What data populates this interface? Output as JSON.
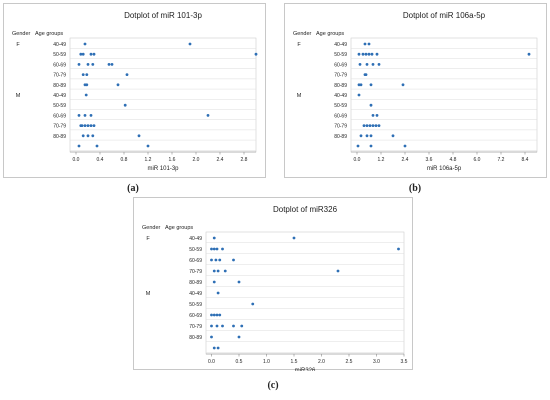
{
  "chart_data": [
    {
      "type": "scatter",
      "subtype": "dotplot",
      "title": "Dotplot of miR 101-3p",
      "xlabel": "miR 101-3p",
      "ylabel_gender": "Gender",
      "ylabel_age": "Age groups",
      "xlim": [
        -0.1,
        3.0
      ],
      "xticks": [
        0.0,
        0.4,
        0.8,
        1.2,
        1.6,
        2.0,
        2.4,
        2.8
      ],
      "xtick_labels": [
        "0.0",
        "0.4",
        "0.8",
        "1.2",
        "1.6",
        "2.0",
        "2.4",
        "2.8"
      ],
      "rows": [
        {
          "gender": "F",
          "age": "40-49",
          "values": [
            0.15,
            1.9
          ]
        },
        {
          "gender": "",
          "age": "50-59",
          "values": [
            0.08,
            0.12,
            0.25,
            0.3,
            3.0
          ]
        },
        {
          "gender": "",
          "age": "60-69",
          "values": [
            0.05,
            0.2,
            0.28,
            0.55,
            0.6
          ]
        },
        {
          "gender": "",
          "age": "70-79",
          "values": [
            0.12,
            0.18,
            0.85
          ]
        },
        {
          "gender": "",
          "age": "80-89",
          "values": [
            0.15,
            0.18,
            0.7
          ]
        },
        {
          "gender": "M",
          "age": "40-49",
          "values": [
            0.17
          ]
        },
        {
          "gender": "",
          "age": "50-59",
          "values": [
            0.82
          ]
        },
        {
          "gender": "",
          "age": "60-69",
          "values": [
            0.05,
            0.15,
            0.25,
            2.2
          ]
        },
        {
          "gender": "",
          "age": "70-79",
          "values": [
            0.08,
            0.1,
            0.15,
            0.2,
            0.25,
            0.3
          ]
        },
        {
          "gender": "",
          "age": "80-89",
          "values": [
            0.12,
            0.2,
            0.28,
            1.05
          ]
        },
        {
          "gender": "",
          "age": "",
          "values": [
            0.05,
            0.35,
            1.2
          ]
        }
      ],
      "caption": "(a)"
    },
    {
      "type": "scatter",
      "subtype": "dotplot",
      "title": "Dotplot of miR 106a-5p",
      "xlabel": "miR 106a-5p",
      "ylabel_gender": "Gender",
      "ylabel_age": "Age groups",
      "xlim": [
        -0.3,
        9.0
      ],
      "xticks": [
        0.0,
        1.2,
        2.4,
        3.6,
        4.8,
        6.0,
        7.2,
        8.4
      ],
      "xtick_labels": [
        "0.0",
        "1.2",
        "2.4",
        "3.6",
        "4.8",
        "6.0",
        "7.2",
        "8.4"
      ],
      "rows": [
        {
          "gender": "F",
          "age": "40-49",
          "values": [
            0.4,
            0.6
          ]
        },
        {
          "gender": "",
          "age": "50-59",
          "values": [
            0.1,
            0.3,
            0.45,
            0.6,
            0.75,
            1.0,
            8.6
          ]
        },
        {
          "gender": "",
          "age": "60-69",
          "values": [
            0.15,
            0.5,
            0.8,
            1.1
          ]
        },
        {
          "gender": "",
          "age": "70-79",
          "values": [
            0.4,
            0.45
          ]
        },
        {
          "gender": "",
          "age": "80-89",
          "values": [
            0.1,
            0.2,
            0.7,
            2.3
          ]
        },
        {
          "gender": "M",
          "age": "40-49",
          "values": [
            0.1
          ]
        },
        {
          "gender": "",
          "age": "50-59",
          "values": [
            0.7
          ]
        },
        {
          "gender": "",
          "age": "60-69",
          "values": [
            0.8,
            1.0
          ]
        },
        {
          "gender": "",
          "age": "70-79",
          "values": [
            0.35,
            0.5,
            0.65,
            0.8,
            0.95,
            1.1
          ]
        },
        {
          "gender": "",
          "age": "80-89",
          "values": [
            0.2,
            0.5,
            0.7,
            1.8
          ]
        },
        {
          "gender": "",
          "age": "",
          "values": [
            0.05,
            0.7,
            2.4
          ]
        }
      ],
      "caption": "(b)"
    },
    {
      "type": "scatter",
      "subtype": "dotplot",
      "title": "Dotplot of miR326",
      "xlabel": "miR326",
      "ylabel_gender": "Gender",
      "ylabel_age": "Age groups",
      "xlim": [
        -0.1,
        3.5
      ],
      "xticks": [
        0.0,
        0.5,
        1.0,
        1.5,
        2.0,
        2.5,
        3.0,
        3.5
      ],
      "xtick_labels": [
        "0.0",
        "0.5",
        "1.0",
        "1.5",
        "2.0",
        "2.5",
        "3.0",
        "3.5"
      ],
      "rows": [
        {
          "gender": "F",
          "age": "40-49",
          "values": [
            0.05,
            1.5
          ]
        },
        {
          "gender": "",
          "age": "50-59",
          "values": [
            0.0,
            0.05,
            0.1,
            0.2,
            3.4
          ]
        },
        {
          "gender": "",
          "age": "60-69",
          "values": [
            0.0,
            0.08,
            0.15,
            0.4
          ]
        },
        {
          "gender": "",
          "age": "70-79",
          "values": [
            0.05,
            0.12,
            0.25,
            2.3
          ]
        },
        {
          "gender": "",
          "age": "80-89",
          "values": [
            0.05,
            0.5
          ]
        },
        {
          "gender": "M",
          "age": "40-49",
          "values": [
            0.12
          ]
        },
        {
          "gender": "",
          "age": "50-59",
          "values": [
            0.75
          ]
        },
        {
          "gender": "",
          "age": "60-69",
          "values": [
            0.0,
            0.05,
            0.1,
            0.15
          ]
        },
        {
          "gender": "",
          "age": "70-79",
          "values": [
            0.0,
            0.1,
            0.2,
            0.4,
            0.55
          ]
        },
        {
          "gender": "",
          "age": "80-89",
          "values": [
            0.0,
            0.5
          ]
        },
        {
          "gender": "",
          "age": "",
          "values": [
            0.05,
            0.12
          ]
        }
      ],
      "caption": "(c)"
    }
  ]
}
